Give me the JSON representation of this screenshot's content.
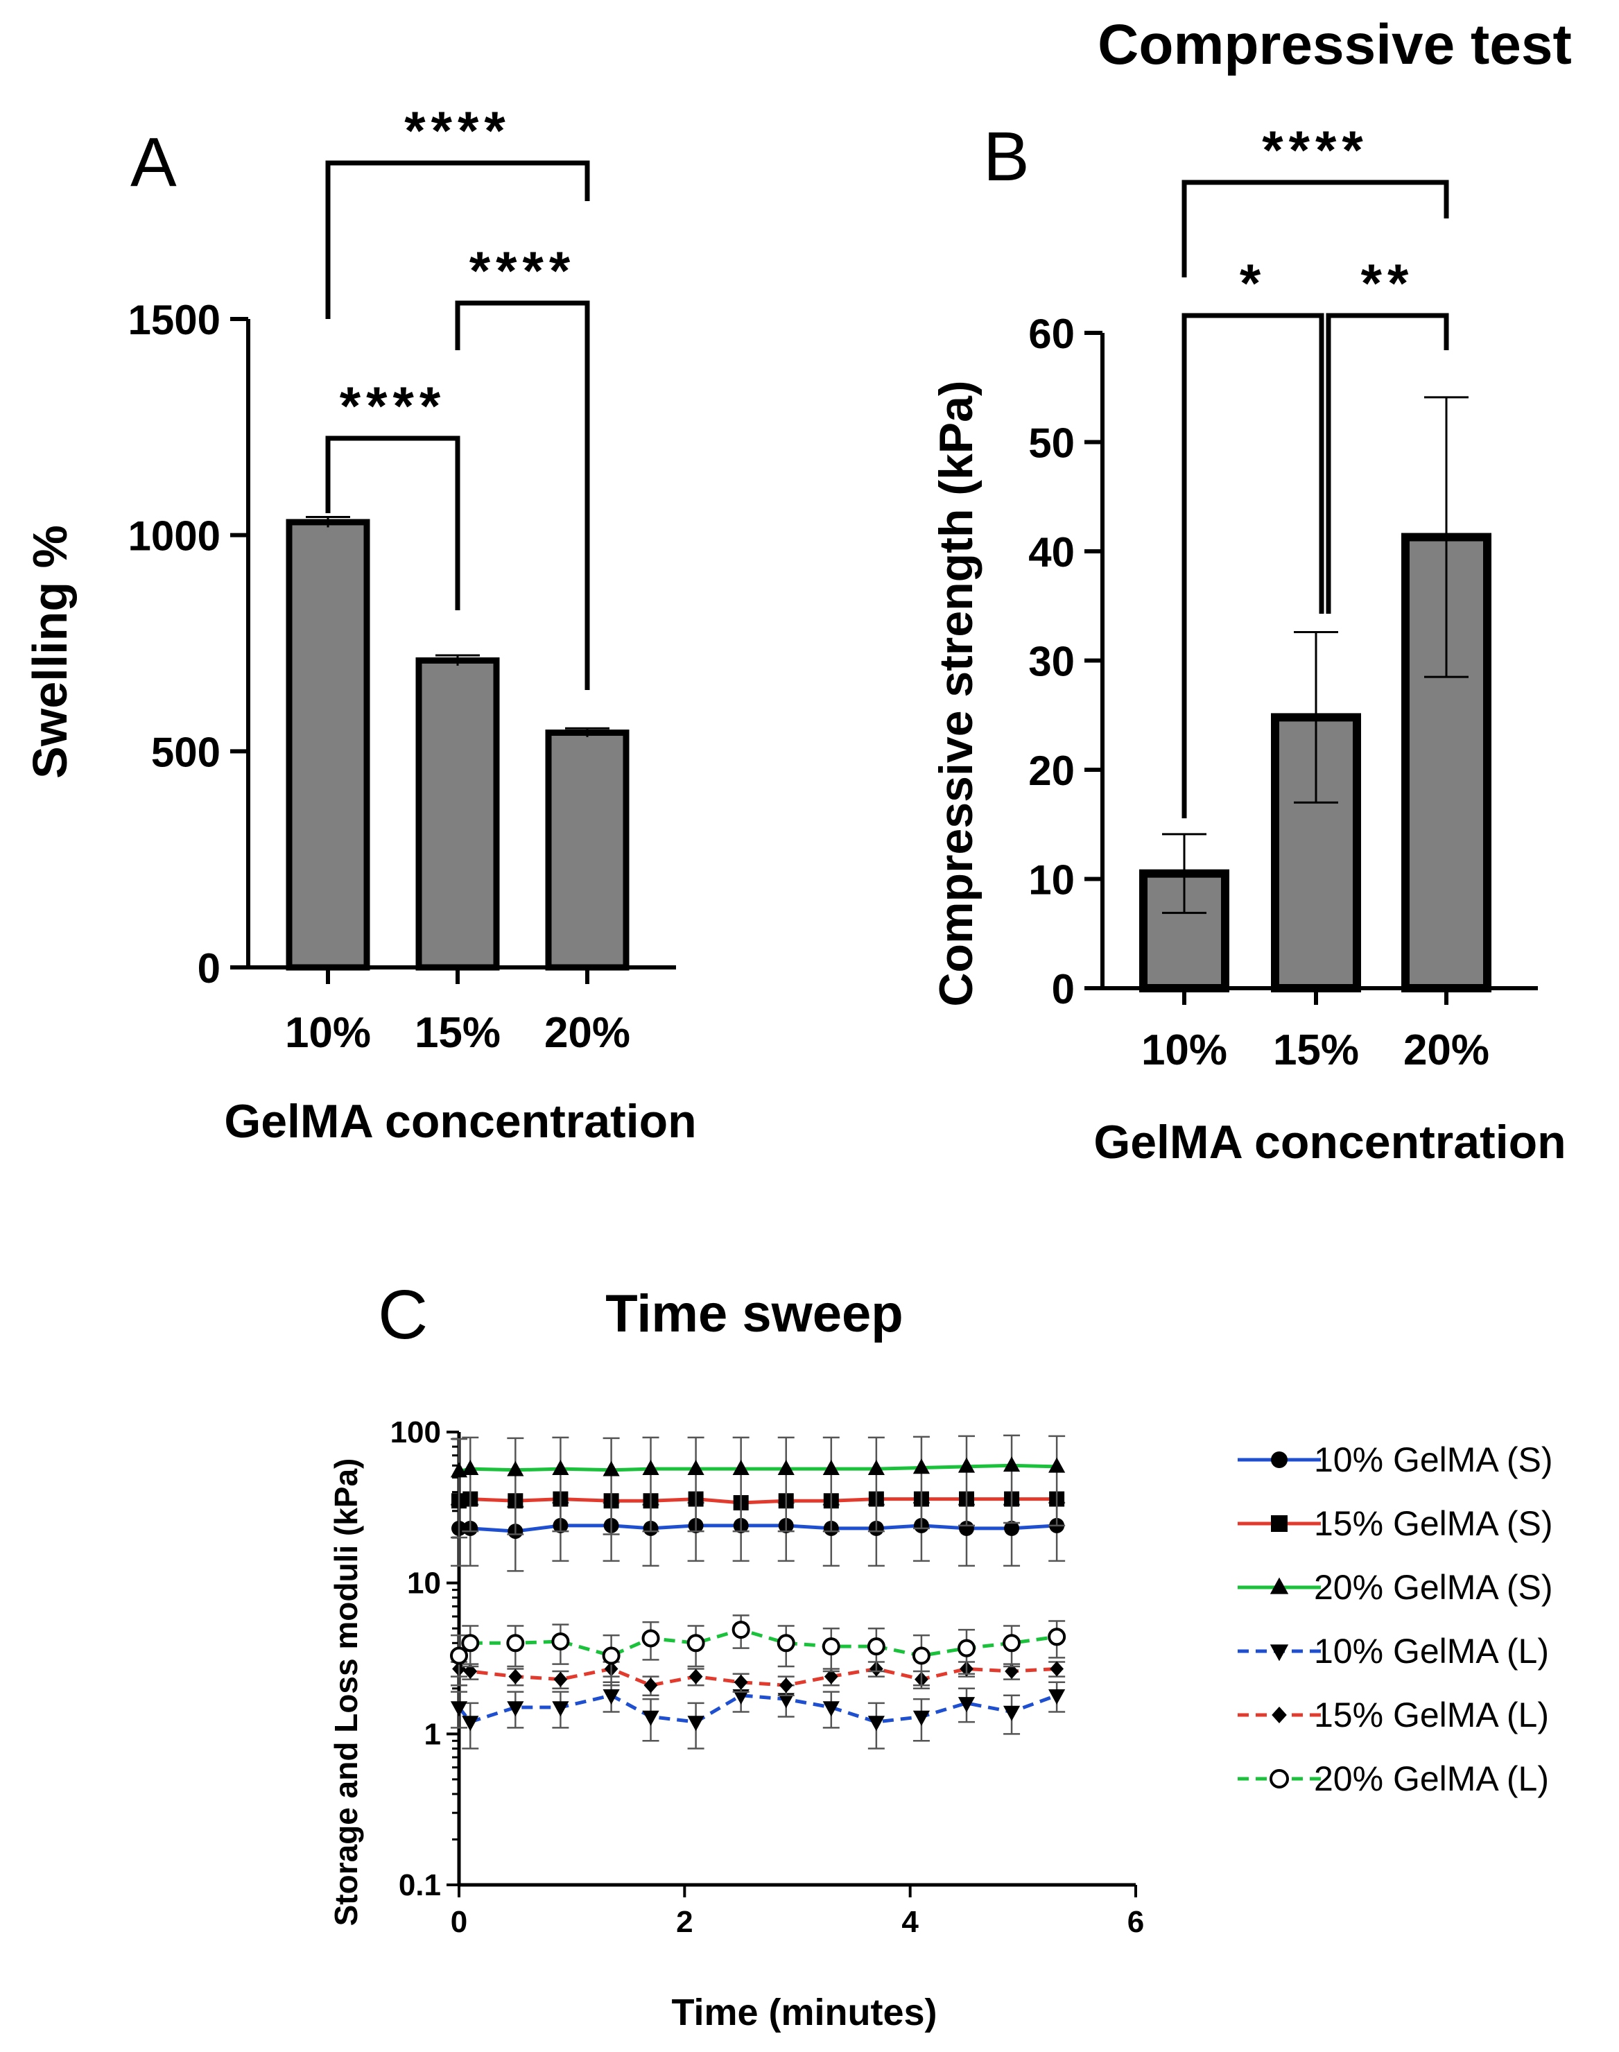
{
  "chart_data": [
    {
      "panel": "A",
      "type": "bar",
      "title": "",
      "xlabel": "GelMA concentration",
      "ylabel": "Swelling %",
      "categories": [
        "10%",
        "15%",
        "20%"
      ],
      "values": [
        1030,
        710,
        543
      ],
      "errors": [
        12,
        12,
        10
      ],
      "ylim": [
        0,
        1500
      ],
      "yticks": [
        0,
        500,
        1000,
        1500
      ],
      "ytick_labels": [
        "0",
        "500",
        "1000",
        "1500"
      ],
      "significance": [
        {
          "from": 0,
          "to": 1,
          "label": "****"
        },
        {
          "from": 1,
          "to": 2,
          "label": "****"
        },
        {
          "from": 0,
          "to": 2,
          "label": "****"
        }
      ]
    },
    {
      "panel": "B",
      "type": "bar",
      "title": "Compressive test",
      "xlabel": "GelMA concentration",
      "ylabel": "Compressive strength (kPa)",
      "categories": [
        "10%",
        "15%",
        "20%"
      ],
      "values": [
        10.5,
        24.8,
        41.3
      ],
      "errors": [
        3.6,
        7.8,
        12.8
      ],
      "ylim": [
        0,
        60
      ],
      "yticks": [
        0,
        10,
        20,
        30,
        40,
        50,
        60
      ],
      "ytick_labels": [
        "0",
        "10",
        "20",
        "30",
        "40",
        "50",
        "60"
      ],
      "significance": [
        {
          "from": 0,
          "to": 1,
          "label": "*"
        },
        {
          "from": 1,
          "to": 2,
          "label": "**"
        },
        {
          "from": 0,
          "to": 2,
          "label": "****"
        }
      ]
    },
    {
      "panel": "C",
      "type": "line",
      "title": "Time sweep",
      "xlabel": "Time (minutes)",
      "ylabel": "Storage and Loss moduli (kPa)",
      "yscale": "log",
      "xlim": [
        0,
        6
      ],
      "ylim": [
        0.1,
        100
      ],
      "xticks": [
        0,
        2,
        4,
        6
      ],
      "xtick_labels": [
        "0",
        "2",
        "4",
        "6"
      ],
      "yticks": [
        0.1,
        1,
        10,
        100
      ],
      "ytick_labels": [
        "0.1",
        "1",
        "10",
        "100"
      ],
      "x": [
        0,
        0.1,
        0.5,
        0.9,
        1.35,
        1.7,
        2.1,
        2.5,
        2.9,
        3.3,
        3.7,
        4.1,
        4.5,
        4.9,
        5.3
      ],
      "series": [
        {
          "name": "10% GelMA (S)",
          "color": "#1f4fd1",
          "marker": "circle",
          "dash": false,
          "values": [
            23,
            23,
            22,
            24,
            24,
            23,
            24,
            24,
            24,
            23,
            23,
            24,
            23,
            23,
            24
          ],
          "error": 10
        },
        {
          "name": "15% GelMA (S)",
          "color": "#e23b2e",
          "marker": "square",
          "dash": false,
          "values": [
            35,
            36,
            35,
            36,
            35,
            35,
            36,
            34,
            35,
            35,
            36,
            36,
            36,
            36,
            36
          ],
          "error": 0
        },
        {
          "name": "20% GelMA (S)",
          "color": "#19c23a",
          "marker": "triangle-up",
          "dash": false,
          "values": [
            55,
            57,
            56,
            57,
            56,
            57,
            57,
            57,
            57,
            57,
            57,
            58,
            59,
            60,
            59
          ],
          "error": 35
        },
        {
          "name": "10% GelMA (L)",
          "color": "#1f4fd1",
          "marker": "triangle-down",
          "dash": true,
          "values": [
            1.5,
            1.2,
            1.5,
            1.5,
            1.8,
            1.3,
            1.2,
            1.8,
            1.7,
            1.5,
            1.2,
            1.3,
            1.6,
            1.4,
            1.8
          ],
          "error": 0.4
        },
        {
          "name": "15% GelMA (L)",
          "color": "#e23b2e",
          "marker": "diamond",
          "dash": true,
          "values": [
            2.7,
            2.6,
            2.4,
            2.3,
            2.7,
            2.1,
            2.4,
            2.2,
            2.1,
            2.4,
            2.7,
            2.3,
            2.7,
            2.6,
            2.7
          ],
          "error": 0.3
        },
        {
          "name": "20% GelMA (L)",
          "color": "#19c23a",
          "marker": "circle-open",
          "dash": true,
          "values": [
            3.3,
            4.0,
            4.0,
            4.1,
            3.3,
            4.3,
            4.0,
            4.9,
            4.0,
            3.8,
            3.8,
            3.3,
            3.7,
            4.0,
            4.4
          ],
          "error": 1.2
        }
      ],
      "legend": "right"
    }
  ],
  "panel_labels": {
    "a": "A",
    "b": "B",
    "c": "C"
  }
}
